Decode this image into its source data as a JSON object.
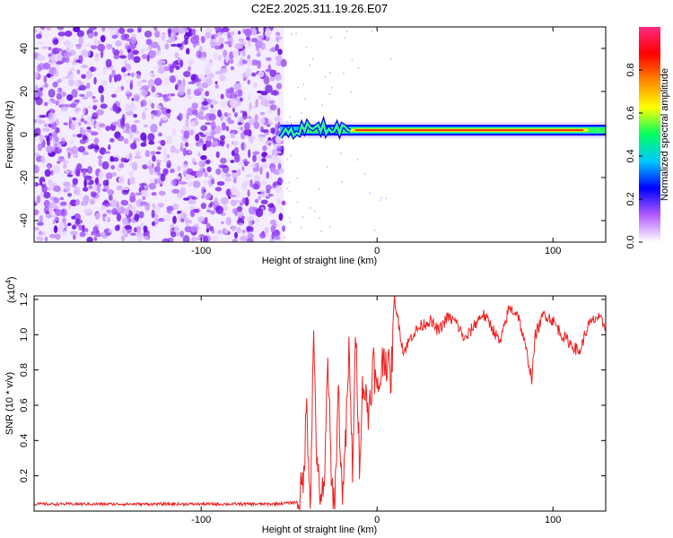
{
  "chart_data": [
    {
      "type": "heatmap",
      "title": "C2E2.2025.311.19.26.E07",
      "xlabel": "Height of straight line (km)",
      "ylabel": "Frequency (Hz)",
      "xlim": [
        -195,
        130
      ],
      "ylim": [
        -50,
        50
      ],
      "xticks": [
        -100,
        0,
        100
      ],
      "yticks": [
        -40,
        -20,
        0,
        20,
        40
      ],
      "colorbar": {
        "label": "Normalized spectral amplitude",
        "range": [
          0,
          1
        ],
        "ticks": [
          "0.0",
          "0.2",
          "0.4",
          "0.6",
          "0.8"
        ],
        "colors": [
          "#ffffff",
          "#b45cff",
          "#0000ff",
          "#00c8ff",
          "#00ff60",
          "#ffff00",
          "#ff8800",
          "#ff0000",
          "#ff2a80"
        ]
      },
      "noise_region_end_km": -53,
      "signal_track": {
        "frequency_hz": 2,
        "start_km": -55,
        "end_km": 130,
        "peak_start_km": -15,
        "peak_end_km": 120
      }
    },
    {
      "type": "line",
      "xlabel": "Height of straight line (km)",
      "ylabel": "SNR (10 * v/v)",
      "multiplier_label": "(x10",
      "multiplier_exp": "4",
      "multiplier_close": ")",
      "xlim": [
        -195,
        130
      ],
      "ylim": [
        0,
        1.22
      ],
      "xticks": [
        -100,
        0,
        100
      ],
      "yticks": [
        "0.2",
        "0.4",
        "0.6",
        "0.8",
        "1.0",
        "1.2"
      ],
      "color": "#ee2222",
      "series": [
        {
          "name": "SNR",
          "x": [
            -195,
            -180,
            -160,
            -140,
            -120,
            -100,
            -80,
            -60,
            -45,
            -42,
            -40,
            -38,
            -36,
            -34,
            -32,
            -30,
            -28,
            -26,
            -24,
            -22,
            -20,
            -18,
            -16,
            -14,
            -12,
            -10,
            -8,
            -5,
            -2,
            0,
            4,
            8,
            10,
            15,
            20,
            25,
            30,
            35,
            40,
            45,
            50,
            55,
            60,
            65,
            70,
            75,
            80,
            85,
            88,
            90,
            95,
            100,
            105,
            110,
            115,
            120,
            125,
            130
          ],
          "values": [
            0.04,
            0.04,
            0.04,
            0.04,
            0.04,
            0.04,
            0.04,
            0.04,
            0.05,
            0.15,
            0.6,
            0.05,
            1.0,
            0.2,
            0.1,
            0.08,
            0.9,
            0.15,
            0.05,
            0.7,
            0.1,
            0.35,
            0.9,
            0.25,
            1.0,
            0.3,
            0.75,
            0.55,
            0.85,
            0.65,
            0.9,
            0.75,
            1.2,
            0.9,
            1.0,
            1.05,
            1.08,
            1.02,
            1.1,
            1.07,
            0.97,
            1.05,
            1.12,
            1.05,
            0.95,
            1.15,
            1.12,
            0.9,
            0.75,
            1.0,
            1.12,
            1.08,
            1.0,
            0.95,
            0.9,
            1.05,
            1.1,
            1.05
          ]
        }
      ]
    }
  ]
}
